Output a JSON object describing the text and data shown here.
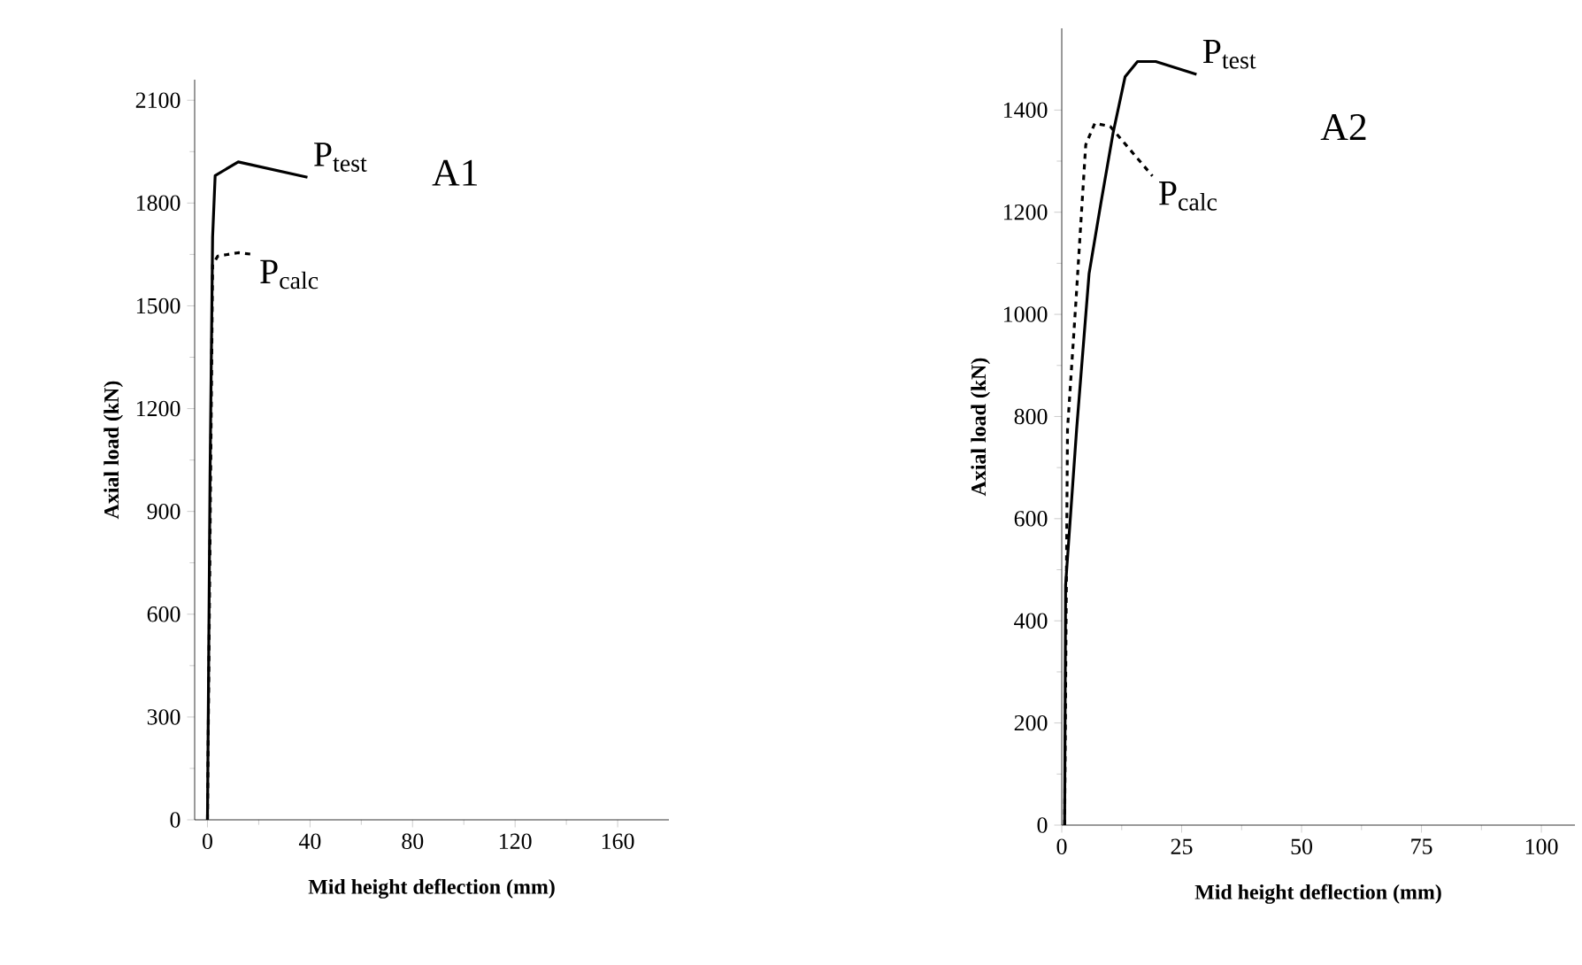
{
  "chart_data": [
    {
      "type": "line",
      "title": "A1",
      "xlabel": "Mid height deflection (mm)",
      "ylabel": "Axial load (kN)",
      "xlim": [
        -5,
        180
      ],
      "ylim": [
        0,
        2160
      ],
      "xticks": [
        0,
        40,
        80,
        120,
        160
      ],
      "yticks": [
        0,
        300,
        600,
        900,
        1200,
        1500,
        1800,
        2100
      ],
      "grid": false,
      "legend": false,
      "series": [
        {
          "name": "P$_{test}$",
          "color": "#000000",
          "line_style": "solid",
          "x": [
            0,
            1,
            2,
            3,
            12,
            39
          ],
          "values": [
            0,
            1000,
            1700,
            1880,
            1920,
            1875
          ]
        },
        {
          "name": "P$_{calc}$",
          "color": "#000000",
          "line_style": "dashed",
          "x": [
            0,
            2,
            4,
            12,
            18
          ],
          "values": [
            0,
            1620,
            1645,
            1655,
            1650
          ]
        }
      ]
    },
    {
      "type": "line",
      "title": "A2",
      "xlabel": "Mid height deflection (mm)",
      "ylabel": "Axial load (kN)",
      "xlim": [
        0,
        107
      ],
      "ylim": [
        0,
        1560
      ],
      "xticks": [
        0,
        25,
        50,
        75,
        100
      ],
      "yticks": [
        0,
        200,
        400,
        600,
        800,
        1000,
        1200,
        1400
      ],
      "grid": false,
      "legend": false,
      "series": [
        {
          "name": "P$_{test}$",
          "color": "#000000",
          "line_style": "solid",
          "x": [
            0.6,
            0.8,
            3.1,
            5.7,
            8.2,
            10.7,
            13.2,
            15.8,
            19.6,
            28.1
          ],
          "values": [
            0,
            470,
            775,
            1080,
            1220,
            1355,
            1465,
            1495,
            1495,
            1470
          ]
        },
        {
          "name": "P$_{calc}$",
          "color": "#000000",
          "line_style": "dashed",
          "x": [
            0.6,
            1.2,
            2.9,
            5.0,
            6.9,
            10.1,
            18.9
          ],
          "values": [
            0,
            775,
            1017,
            1332,
            1374,
            1368,
            1271
          ]
        }
      ]
    }
  ]
}
